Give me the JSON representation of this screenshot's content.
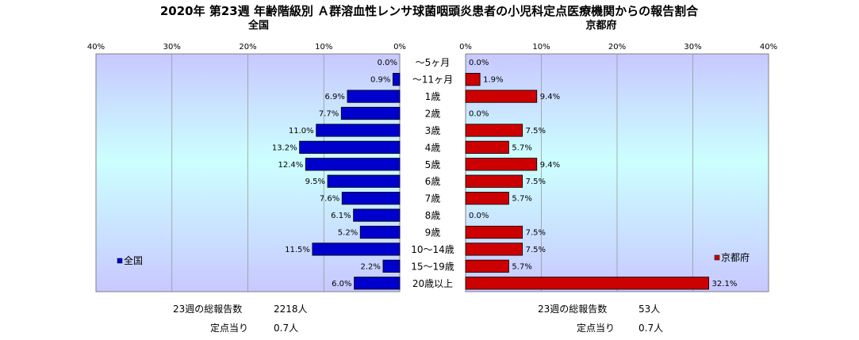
{
  "title": "2020年 第23週 年齢階級別 Ａ群溶血性レンサ球菌咽頭炎患者の小児科定点医療機関からの報告割合",
  "chart_data": {
    "type": "bar",
    "orientation": "horizontal",
    "categories": [
      "～5ヶ月",
      "～11ヶ月",
      "1歳",
      "2歳",
      "3歳",
      "4歳",
      "5歳",
      "6歳",
      "7歳",
      "8歳",
      "9歳",
      "10～14歳",
      "15～19歳",
      "20歳以上"
    ],
    "x_ticks": [
      "40%",
      "30%",
      "20%",
      "10%",
      "0%"
    ],
    "x_ticks_right": [
      "0%",
      "10%",
      "20%",
      "30%",
      "40%"
    ],
    "xlim": [
      0,
      40
    ],
    "grid": true,
    "series": [
      {
        "name": "全国",
        "panel_title": "全国",
        "color": "#0000cc",
        "legend_position": "bottom-left",
        "values": [
          0.0,
          0.9,
          6.9,
          7.7,
          11.0,
          13.2,
          12.4,
          9.5,
          7.6,
          6.1,
          5.2,
          11.5,
          2.2,
          6.0
        ],
        "labels": [
          "0.0%",
          "0.9%",
          "6.9%",
          "7.7%",
          "11.0%",
          "13.2%",
          "12.4%",
          "9.5%",
          "7.6%",
          "6.1%",
          "5.2%",
          "11.5%",
          "2.2%",
          "6.0%"
        ]
      },
      {
        "name": "京都府",
        "panel_title": "京都府",
        "color": "#cc0000",
        "legend_position": "bottom-right",
        "values": [
          0.0,
          1.9,
          9.4,
          0.0,
          7.5,
          5.7,
          9.4,
          7.5,
          5.7,
          0.0,
          7.5,
          7.5,
          5.7,
          32.1
        ],
        "labels": [
          "0.0%",
          "1.9%",
          "9.4%",
          "0.0%",
          "7.5%",
          "5.7%",
          "9.4%",
          "7.5%",
          "5.7%",
          "0.0%",
          "7.5%",
          "7.5%",
          "5.7%",
          "32.1%"
        ]
      }
    ]
  },
  "footer": {
    "left": {
      "total_label": "23週の総報告数",
      "total_value": "2218人",
      "per_label": "定点当り",
      "per_value": "0.7人"
    },
    "right": {
      "total_label": "23週の総報告数",
      "total_value": "53人",
      "per_label": "定点当り",
      "per_value": "0.7人"
    }
  }
}
